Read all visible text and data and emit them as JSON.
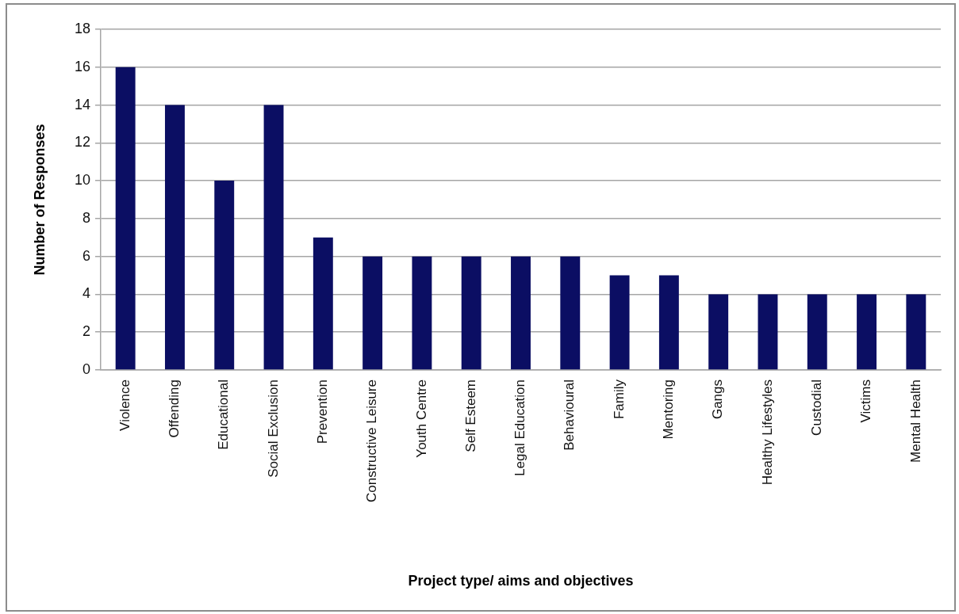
{
  "chart_data": {
    "type": "bar",
    "xlabel": "Project type/ aims and objectives",
    "ylabel": "Number of Responses",
    "categories": [
      "Violence",
      "Offending",
      "Educational",
      "Social Exclusion",
      "Prevention",
      "Constructive Leisure",
      "Youth Centre",
      "Self Esteem",
      "Legal Education",
      "Behavioural",
      "Family",
      "Mentoring",
      "Gangs",
      "Healthy Lifestyles",
      "Custodial",
      "Victims",
      "Mental Health"
    ],
    "values": [
      16,
      14,
      10,
      14,
      7,
      6,
      6,
      6,
      6,
      6,
      5,
      5,
      4,
      4,
      4,
      4,
      4
    ],
    "color": "#0b0e63",
    "ylim": [
      0,
      18
    ],
    "yticks": [
      0,
      2,
      4,
      6,
      8,
      10,
      12,
      14,
      16,
      18
    ],
    "grid": "y"
  }
}
